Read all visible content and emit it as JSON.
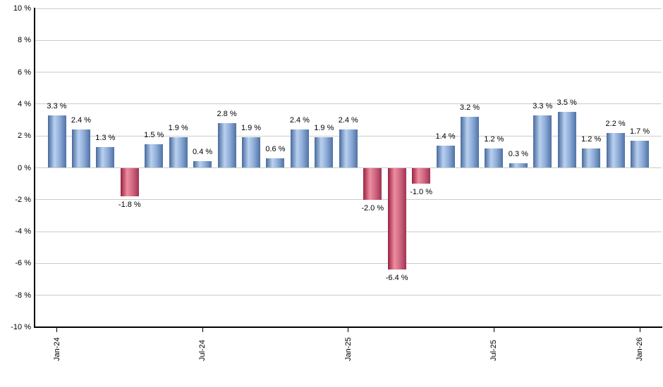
{
  "chart_data": {
    "type": "bar",
    "title": "",
    "unit": "%",
    "ylim": [
      -10,
      10
    ],
    "grid": true,
    "legend_position": "none",
    "y_ticks": [
      10,
      8,
      6,
      4,
      2,
      0,
      -2,
      -4,
      -6,
      -8,
      -10
    ],
    "y_tick_labels": [
      "10 %",
      "8 %",
      "6 %",
      "4 %",
      "2 %",
      "0 %",
      "-2 %",
      "-4 %",
      "-6 %",
      "-8 %",
      "-10 %"
    ],
    "values": [
      3.3,
      2.4,
      1.3,
      -1.8,
      1.5,
      1.9,
      0.4,
      2.8,
      1.9,
      0.6,
      2.4,
      1.9,
      2.4,
      -2.0,
      -6.4,
      -1.0,
      1.4,
      3.2,
      1.2,
      0.3,
      3.3,
      3.5,
      1.2,
      2.2,
      1.7
    ],
    "bar_labels": [
      "3.3 %",
      "2.4 %",
      "1.3 %",
      "-1.8 %",
      "1.5 %",
      "1.9 %",
      "0.4 %",
      "2.8 %",
      "1.9 %",
      "0.6 %",
      "2.4 %",
      "1.9 %",
      "2.4 %",
      "-2.0 %",
      "-6.4 %",
      "-1.0 %",
      "1.4 %",
      "3.2 %",
      "1.2 %",
      "0.3 %",
      "3.3 %",
      "3.5 %",
      "1.2 %",
      "2.2 %",
      "1.7 %"
    ],
    "x_ticks": [
      {
        "bar_index": 0,
        "label": "Jan-24"
      },
      {
        "bar_index": 6,
        "label": "Jul-24"
      },
      {
        "bar_index": 12,
        "label": "Jan-25"
      },
      {
        "bar_index": 18,
        "label": "Jul-25"
      },
      {
        "bar_index": 24,
        "label": "Jan-26"
      }
    ],
    "colors": {
      "positive_gradient": [
        "#47699c",
        "#b9d1f0",
        "#8fadd9",
        "#4f73a5"
      ],
      "negative_gradient": [
        "#9b2040",
        "#ee8da1",
        "#d06a84",
        "#a23450"
      ],
      "gridline": "#cccccc",
      "axis": "#000000",
      "label_text": "#000000"
    }
  }
}
